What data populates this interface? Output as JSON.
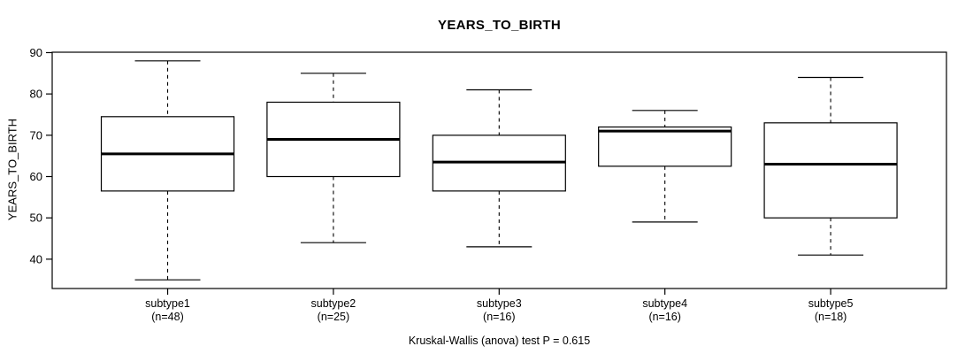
{
  "figure": {
    "title": "YEARS_TO_BIRTH",
    "y_axis_label": "YEARS_TO_BIRTH",
    "caption": "Kruskal-Wallis (anova) test P = 0.615"
  },
  "chart_data": {
    "type": "box",
    "title": "YEARS_TO_BIRTH",
    "xlabel": "",
    "ylabel": "YEARS_TO_BIRTH",
    "ylim": [
      32.9,
      90.1
    ],
    "yticks": [
      40,
      50,
      60,
      70,
      80,
      90
    ],
    "grid": false,
    "legend": "none",
    "outliers": [],
    "categories": [
      "subtype1",
      "subtype2",
      "subtype3",
      "subtype4",
      "subtype5"
    ],
    "sample_size_labels": [
      "(n=48)",
      "(n=25)",
      "(n=16)",
      "(n=16)",
      "(n=18)"
    ],
    "series": [
      {
        "name": "subtype1",
        "n": 48,
        "whisker_low": 35,
        "q1": 56.5,
        "median": 65.5,
        "q3": 74.5,
        "whisker_high": 88
      },
      {
        "name": "subtype2",
        "n": 25,
        "whisker_low": 44,
        "q1": 60,
        "median": 69,
        "q3": 78,
        "whisker_high": 85
      },
      {
        "name": "subtype3",
        "n": 16,
        "whisker_low": 43,
        "q1": 56.5,
        "median": 63.5,
        "q3": 70,
        "whisker_high": 81
      },
      {
        "name": "subtype4",
        "n": 16,
        "whisker_low": 49,
        "q1": 62.5,
        "median": 71,
        "q3": 72,
        "whisker_high": 76
      },
      {
        "name": "subtype5",
        "n": 18,
        "whisker_low": 41,
        "q1": 50,
        "median": 63,
        "q3": 73,
        "whisker_high": 84
      }
    ],
    "annotation": "Kruskal-Wallis (anova) test P = 0.615",
    "line_color": "#000000",
    "box_fill": "#ffffff",
    "background": "#ffffff"
  }
}
